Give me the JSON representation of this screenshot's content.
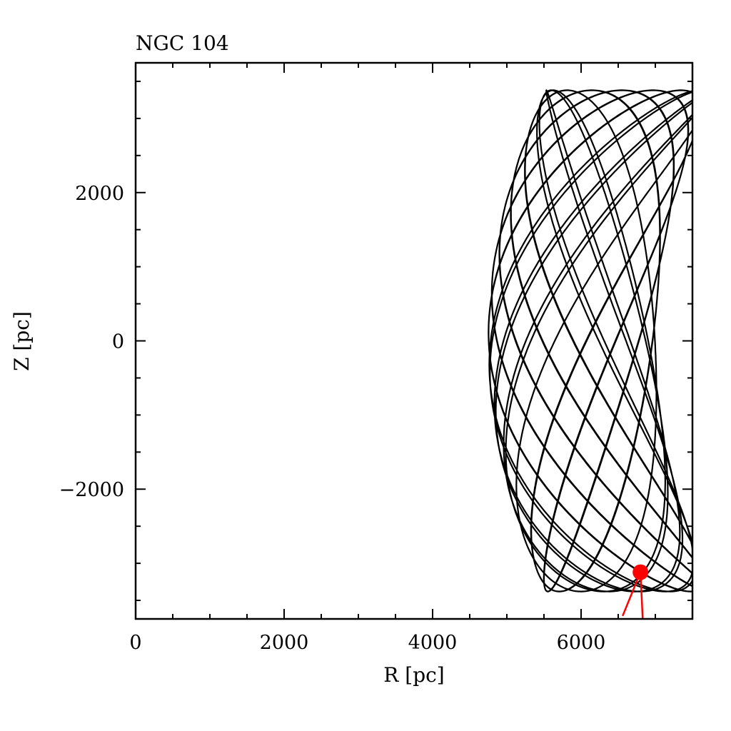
{
  "chart_data": {
    "type": "line",
    "title": "NGC 104",
    "xlabel": "R [pc]",
    "ylabel": "Z [pc]",
    "xlim": [
      0,
      7500
    ],
    "ylim": [
      -3750,
      3750
    ],
    "xticks": [
      0,
      2000,
      4000,
      6000
    ],
    "xtick_labels": [
      "0",
      "2000",
      "4000",
      "6000"
    ],
    "yticks": [
      -2000,
      0,
      2000
    ],
    "ytick_labels": [
      "−2000",
      "0",
      "2000"
    ],
    "grid": false,
    "series": [
      {
        "style": "orbit",
        "color": "#000000",
        "orbit_model": {
          "R_center": 6150,
          "R_amplitude": 1250,
          "R_curvature": 1.0,
          "Z_amplitude": 3380,
          "frequency_R": 1.47,
          "frequency_Z": 1.0,
          "phase_R": 0.6,
          "turns": 16
        }
      },
      {
        "style": "current-position",
        "color": "#ff0000",
        "points": [
          {
            "x": 6800,
            "y": -3120
          }
        ],
        "velocity_arrow": [
          {
            "x": 6800,
            "y": -3120
          },
          {
            "x": 6560,
            "y": -3710
          },
          {
            "x": 6800,
            "y": -3120
          },
          {
            "x": 6830,
            "y": -3750
          }
        ]
      }
    ]
  }
}
